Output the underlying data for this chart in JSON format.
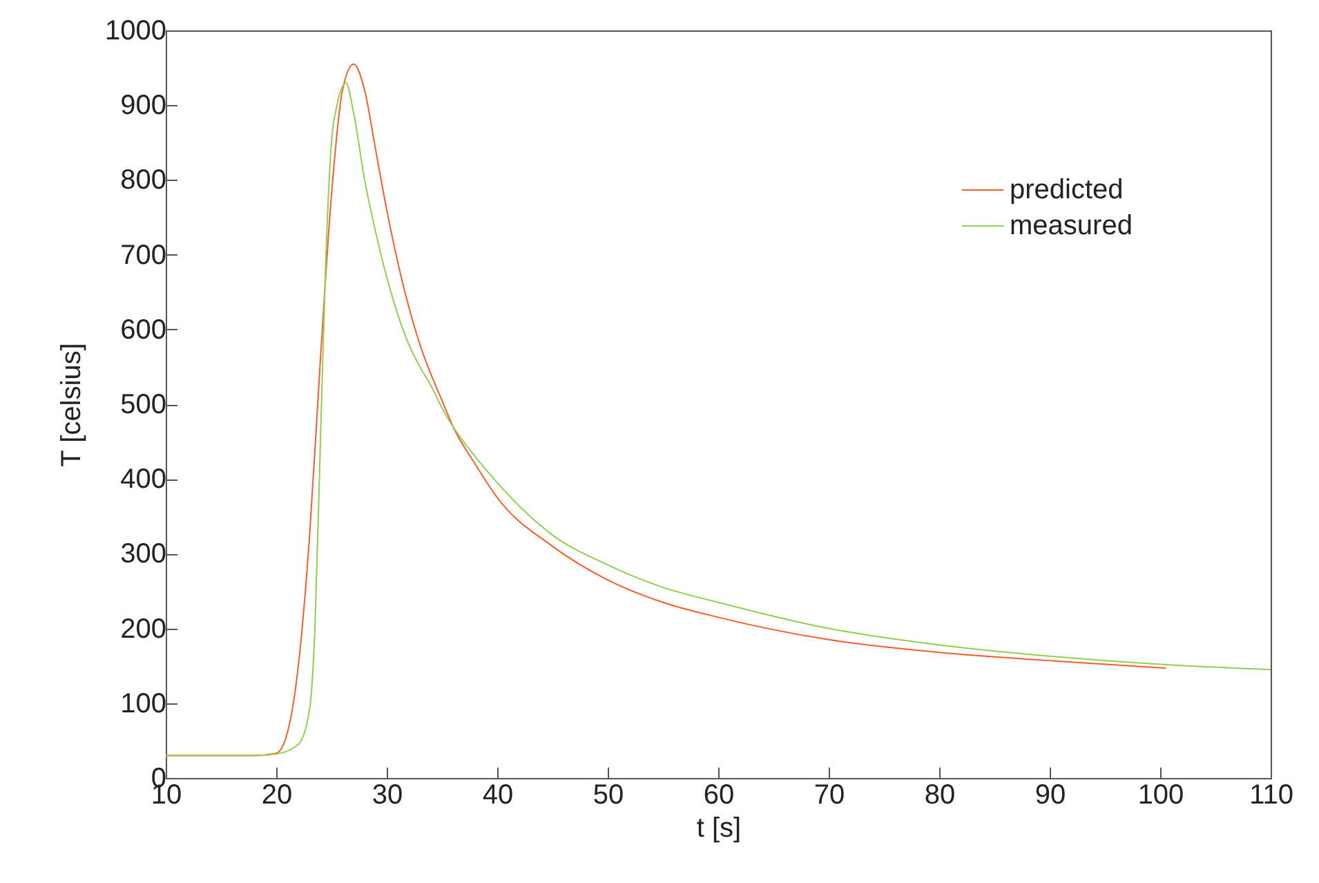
{
  "chart_data": {
    "type": "line",
    "xlabel": "t [s]",
    "ylabel": "T [celsius]",
    "xlim": [
      10,
      110
    ],
    "xticks": [
      10,
      20,
      30,
      40,
      50,
      60,
      70,
      80,
      90,
      100,
      110
    ],
    "ylim": [
      0,
      1000
    ],
    "yticks": [
      0,
      100,
      200,
      300,
      400,
      500,
      600,
      700,
      800,
      900,
      1000
    ],
    "grid": false,
    "legend": "top right",
    "marker": "none",
    "line_style": "solid",
    "series": [
      {
        "name": "predicted",
        "color": "#ff5a2a",
        "x": [
          10,
          18,
          20,
          21,
          22,
          23,
          24,
          25,
          26,
          27,
          28,
          29,
          30,
          31,
          32,
          33,
          34,
          35,
          36,
          38,
          40,
          45,
          50,
          55,
          60,
          70,
          80,
          90,
          100.5
        ],
        "values": [
          30,
          30,
          33,
          60,
          150,
          320,
          560,
          780,
          920,
          955,
          920,
          840,
          760,
          690,
          630,
          580,
          540,
          505,
          470,
          420,
          375,
          310,
          265,
          235,
          215,
          185,
          168,
          157,
          147
        ]
      },
      {
        "name": "measured",
        "color": "#8fd050",
        "x": [
          10,
          18,
          20,
          22,
          23,
          23.5,
          24,
          24.5,
          25,
          25.5,
          26,
          26.3,
          27,
          28,
          29,
          30,
          31,
          32,
          33,
          34,
          35,
          36,
          38,
          40,
          45,
          50,
          55,
          60,
          70,
          80,
          90,
          100,
          110
        ],
        "values": [
          30,
          30,
          32,
          45,
          90,
          200,
          450,
          700,
          850,
          900,
          925,
          930,
          890,
          800,
          730,
          670,
          620,
          580,
          550,
          525,
          495,
          470,
          430,
          395,
          325,
          285,
          255,
          235,
          200,
          178,
          163,
          152,
          145
        ]
      }
    ]
  }
}
